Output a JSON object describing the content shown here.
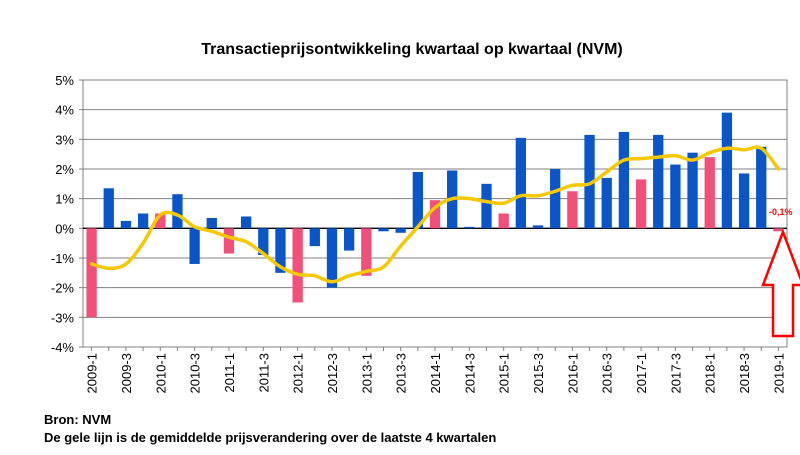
{
  "chart_data": {
    "type": "bar",
    "title": "Transactieprijsontwikkeling kwartaal op kwartaal (NVM)",
    "ylim": [
      -4,
      5
    ],
    "yticks": [
      "5%",
      "4%",
      "3%",
      "2%",
      "1%",
      "0%",
      "-1%",
      "-2%",
      "-3%",
      "-4%"
    ],
    "categories": [
      "2009-1",
      "2009-2",
      "2009-3",
      "2009-4",
      "2010-1",
      "2010-2",
      "2010-3",
      "2010-4",
      "2011-1",
      "2011-2",
      "2011-3",
      "2011-4",
      "2012-1",
      "2012-2",
      "2012-3",
      "2012-4",
      "2013-1",
      "2013-2",
      "2013-3",
      "2013-4",
      "2014-1",
      "2014-2",
      "2014-3",
      "2014-4",
      "2015-1",
      "2015-2",
      "2015-3",
      "2015-4",
      "2016-1",
      "2016-2",
      "2016-3",
      "2016-4",
      "2017-1",
      "2017-2",
      "2017-3",
      "2017-4",
      "2018-1",
      "2018-2",
      "2018-3",
      "2018-4",
      "2019-1"
    ],
    "tick_labels": [
      "2009-1",
      "",
      "2009-3",
      "",
      "2010-1",
      "",
      "2010-3",
      "",
      "2011-1",
      "",
      "2011-3",
      "",
      "2012-1",
      "",
      "2012-3",
      "",
      "2013-1",
      "",
      "2013-3",
      "",
      "2014-1",
      "",
      "2014-3",
      "",
      "2015-1",
      "",
      "2015-3",
      "",
      "2016-1",
      "",
      "2016-3",
      "",
      "2017-1",
      "",
      "2017-3",
      "",
      "2018-1",
      "",
      "2018-3",
      "",
      "2019-1"
    ],
    "series": [
      {
        "type": "bar",
        "values": [
          -3.0,
          1.35,
          0.25,
          0.5,
          0.5,
          1.15,
          -1.2,
          0.35,
          -0.85,
          0.4,
          -0.9,
          -1.5,
          -2.5,
          -0.6,
          -2.0,
          -0.75,
          -1.6,
          -0.1,
          -0.15,
          1.9,
          0.95,
          1.95,
          0.05,
          1.5,
          0.5,
          3.05,
          0.1,
          2.0,
          1.25,
          3.15,
          1.7,
          3.25,
          1.65,
          3.15,
          2.15,
          2.55,
          2.4,
          3.9,
          1.85,
          2.75,
          -0.1
        ],
        "color_key": [
          "Q1",
          "Q2",
          "Q3",
          "Q4"
        ],
        "colors": {
          "q1": "#f0507a",
          "other": "#0a56c8"
        }
      },
      {
        "type": "line",
        "color": "#f5c800",
        "values": [
          -1.2,
          -1.35,
          -1.2,
          -0.5,
          0.45,
          0.45,
          0.05,
          -0.1,
          -0.3,
          -0.45,
          -0.85,
          -1.3,
          -1.55,
          -1.6,
          -1.8,
          -1.6,
          -1.45,
          -1.3,
          -0.6,
          0.05,
          0.7,
          1.0,
          1.0,
          0.9,
          0.85,
          1.1,
          1.1,
          1.25,
          1.45,
          1.5,
          1.9,
          2.3,
          2.35,
          2.4,
          2.45,
          2.3,
          2.55,
          2.7,
          2.65,
          2.7,
          2.0
        ]
      }
    ],
    "annotation": {
      "text": "-0,1%",
      "color": "#ff0000"
    },
    "arrow": {
      "color": "#ff0000"
    },
    "grid": true
  },
  "footer": {
    "source": "Bron: NVM",
    "note": "De gele lijn  is de gemiddelde  prijsverandering  over de laatste 4 kwartalen"
  }
}
